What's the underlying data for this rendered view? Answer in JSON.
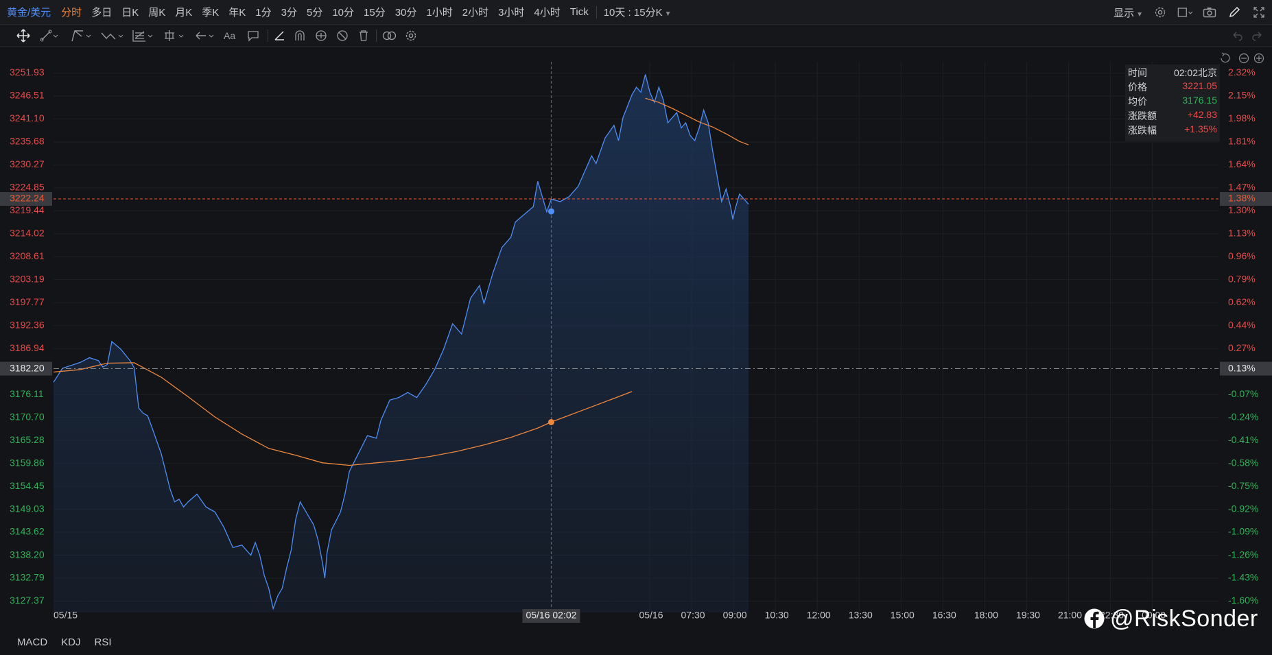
{
  "topbar": {
    "symbol": "黄金/美元",
    "periods": [
      "分时",
      "多日",
      "日K",
      "周K",
      "月K",
      "季K",
      "年K",
      "1分",
      "3分",
      "5分",
      "10分",
      "15分",
      "30分",
      "1小时",
      "2小时",
      "3小时",
      "4小时",
      "Tick"
    ],
    "active_period": "分时",
    "range": "10天 : 15分K",
    "display_label": "显示"
  },
  "toolbar": {
    "icons": [
      "move-icon",
      "line-icon",
      "channel-icon",
      "wave-icon",
      "fib-icon",
      "measure-icon",
      "arrow-icon",
      "text-icon",
      "comment-icon",
      "pen-icon",
      "magnet-icon",
      "eye-icon",
      "hide-icon",
      "trash-icon",
      "link-icon",
      "settings-icon"
    ],
    "text_tool_label": "Aa"
  },
  "infobox": {
    "rows": [
      {
        "key": "时间",
        "value": "02:02北京"
      },
      {
        "key": "价格",
        "value": "3221.05"
      },
      {
        "key": "均价",
        "value": "3176.15"
      },
      {
        "key": "涨跌额",
        "value": "+42.83"
      },
      {
        "key": "涨跌幅",
        "value": "+1.35%"
      }
    ]
  },
  "indicators": [
    "MACD",
    "KDJ",
    "RSI"
  ],
  "watermark": "@RiskSonder",
  "colors": {
    "price_line": "#4f8ef7",
    "avg_line": "#f0883e",
    "up": "#e84a4a",
    "down": "#2fb35a",
    "crosshair_price": "#f05a35",
    "background": "#131417"
  },
  "chart_data": {
    "type": "line",
    "ylim": [
      3124.7,
      3254.6
    ],
    "y_ticks": [
      3251.93,
      3246.51,
      3241.1,
      3235.68,
      3230.27,
      3224.85,
      3219.44,
      3214.02,
      3208.61,
      3203.19,
      3197.77,
      3192.36,
      3186.94,
      3176.11,
      3170.7,
      3165.28,
      3159.86,
      3154.45,
      3149.03,
      3143.62,
      3138.2,
      3132.79,
      3127.37
    ],
    "pct_ticks": [
      "2.32%",
      "2.15%",
      "1.98%",
      "1.81%",
      "1.64%",
      "1.47%",
      "1.30%",
      "1.13%",
      "0.96%",
      "0.79%",
      "0.62%",
      "0.44%",
      "0.27%",
      "-0.07%",
      "-0.24%",
      "-0.41%",
      "-0.58%",
      "-0.75%",
      "-0.92%",
      "-1.09%",
      "-1.26%",
      "-1.43%",
      "-1.60%"
    ],
    "x_ticks": [
      "05/15",
      "05/16",
      "07:30",
      "09:00",
      "10:30",
      "12:00",
      "13:30",
      "15:00",
      "16:30",
      "18:00",
      "19:30",
      "21:00",
      "22:30",
      "00:00"
    ],
    "prev_close": 3182.2,
    "prev_close_pct": "0.13%",
    "crosshair": {
      "price_label": "3222.24",
      "pct_label": "1.38%",
      "time_label": "05/16 02:02",
      "price": 3222.24
    },
    "series": [
      {
        "name": "价格",
        "points": [
          [
            0,
            3179.0
          ],
          [
            0.2,
            3182.3
          ],
          [
            0.4,
            3183.0
          ],
          [
            0.6,
            3183.7
          ],
          [
            0.8,
            3184.8
          ],
          [
            1.0,
            3184.1
          ],
          [
            1.1,
            3182.6
          ],
          [
            1.2,
            3183.2
          ],
          [
            1.3,
            3188.6
          ],
          [
            1.5,
            3186.8
          ],
          [
            1.7,
            3184.2
          ],
          [
            1.8,
            3182.4
          ],
          [
            1.9,
            3172.9
          ],
          [
            2.0,
            3171.7
          ],
          [
            2.1,
            3171.1
          ],
          [
            2.2,
            3168.2
          ],
          [
            2.4,
            3162.2
          ],
          [
            2.6,
            3153.8
          ],
          [
            2.7,
            3150.8
          ],
          [
            2.8,
            3151.4
          ],
          [
            2.9,
            3149.6
          ],
          [
            3.0,
            3150.8
          ],
          [
            3.2,
            3152.6
          ],
          [
            3.4,
            3149.6
          ],
          [
            3.6,
            3148.4
          ],
          [
            3.8,
            3144.8
          ],
          [
            4.0,
            3140.0
          ],
          [
            4.2,
            3140.6
          ],
          [
            4.4,
            3138.2
          ],
          [
            4.5,
            3141.2
          ],
          [
            4.6,
            3138.2
          ],
          [
            4.7,
            3133.4
          ],
          [
            4.8,
            3130.4
          ],
          [
            4.9,
            3125.6
          ],
          [
            5.0,
            3128.6
          ],
          [
            5.1,
            3130.4
          ],
          [
            5.2,
            3135.2
          ],
          [
            5.3,
            3139.4
          ],
          [
            5.4,
            3146.6
          ],
          [
            5.5,
            3150.8
          ],
          [
            5.6,
            3149.0
          ],
          [
            5.7,
            3147.2
          ],
          [
            5.8,
            3145.4
          ],
          [
            5.9,
            3141.8
          ],
          [
            6.0,
            3136.4
          ],
          [
            6.05,
            3132.8
          ],
          [
            6.1,
            3138.8
          ],
          [
            6.2,
            3144.2
          ],
          [
            6.4,
            3148.4
          ],
          [
            6.5,
            3152.6
          ],
          [
            6.6,
            3158.0
          ],
          [
            6.8,
            3162.2
          ],
          [
            7.0,
            3166.4
          ],
          [
            7.2,
            3165.8
          ],
          [
            7.3,
            3170.0
          ],
          [
            7.5,
            3174.8
          ],
          [
            7.7,
            3175.4
          ],
          [
            7.9,
            3176.6
          ],
          [
            8.1,
            3175.4
          ],
          [
            8.3,
            3178.4
          ],
          [
            8.5,
            3182.0
          ],
          [
            8.7,
            3186.8
          ],
          [
            8.9,
            3192.8
          ],
          [
            9.1,
            3190.4
          ],
          [
            9.3,
            3198.8
          ],
          [
            9.5,
            3201.8
          ],
          [
            9.6,
            3197.6
          ],
          [
            9.8,
            3204.8
          ],
          [
            10.0,
            3210.8
          ],
          [
            10.2,
            3213.2
          ],
          [
            10.3,
            3216.8
          ],
          [
            10.5,
            3218.6
          ],
          [
            10.7,
            3220.4
          ],
          [
            10.8,
            3226.4
          ],
          [
            11.0,
            3219.2
          ],
          [
            11.1,
            3222.2
          ],
          [
            11.3,
            3221.6
          ],
          [
            11.5,
            3222.8
          ],
          [
            11.7,
            3225.2
          ],
          [
            11.9,
            3230.0
          ],
          [
            12.0,
            3232.4
          ],
          [
            12.1,
            3230.6
          ],
          [
            12.3,
            3236.6
          ],
          [
            12.5,
            3239.6
          ],
          [
            12.6,
            3236.0
          ],
          [
            12.7,
            3241.4
          ],
          [
            12.9,
            3246.8
          ],
          [
            13.0,
            3248.6
          ],
          [
            13.1,
            3247.4
          ],
          [
            13.2,
            3251.6
          ],
          [
            13.3,
            3247.4
          ],
          [
            13.4,
            3245.0
          ],
          [
            13.5,
            3248.6
          ],
          [
            13.6,
            3245.6
          ],
          [
            13.7,
            3240.2
          ],
          [
            13.8,
            3241.4
          ],
          [
            13.9,
            3242.6
          ],
          [
            14.0,
            3239.0
          ],
          [
            14.1,
            3240.2
          ],
          [
            14.2,
            3237.2
          ],
          [
            14.3,
            3236.0
          ],
          [
            14.4,
            3239.0
          ],
          [
            14.5,
            3243.2
          ],
          [
            14.6,
            3240.2
          ],
          [
            14.7,
            3233.6
          ],
          [
            14.8,
            3227.6
          ],
          [
            14.9,
            3221.6
          ],
          [
            15.0,
            3224.6
          ],
          [
            15.1,
            3220.4
          ],
          [
            15.15,
            3217.4
          ],
          [
            15.2,
            3219.8
          ],
          [
            15.3,
            3223.4
          ],
          [
            15.4,
            3222.2
          ],
          [
            15.5,
            3221.0
          ]
        ]
      },
      {
        "name": "均价",
        "points": [
          [
            0,
            3181.4
          ],
          [
            0.6,
            3182.0
          ],
          [
            1.2,
            3183.5
          ],
          [
            1.8,
            3183.6
          ],
          [
            2.4,
            3180.2
          ],
          [
            3.0,
            3175.6
          ],
          [
            3.6,
            3170.8
          ],
          [
            4.2,
            3166.8
          ],
          [
            4.8,
            3163.4
          ],
          [
            5.4,
            3161.8
          ],
          [
            6.0,
            3160.0
          ],
          [
            6.6,
            3159.4
          ],
          [
            7.2,
            3160.0
          ],
          [
            7.8,
            3160.6
          ],
          [
            8.4,
            3161.5
          ],
          [
            9.0,
            3162.7
          ],
          [
            9.6,
            3164.2
          ],
          [
            10.2,
            3166.0
          ],
          [
            10.8,
            3168.2
          ],
          [
            11.1,
            3169.6
          ],
          [
            11.4,
            3170.8
          ],
          [
            12.0,
            3173.2
          ],
          [
            12.6,
            3175.6
          ],
          [
            12.9,
            3176.8
          ],
          [
            13.2,
            3246.0
          ],
          [
            13.5,
            3245.0
          ],
          [
            13.8,
            3243.6
          ],
          [
            14.1,
            3242.0
          ],
          [
            14.4,
            3240.4
          ],
          [
            14.7,
            3239.2
          ],
          [
            15.0,
            3237.6
          ],
          [
            15.3,
            3235.8
          ],
          [
            15.5,
            3235.0
          ]
        ]
      }
    ],
    "markers": [
      {
        "series": "价格",
        "x": 11.1,
        "y": 3219.3
      },
      {
        "series": "均价",
        "x": 11.1,
        "y": 3169.6
      }
    ]
  }
}
